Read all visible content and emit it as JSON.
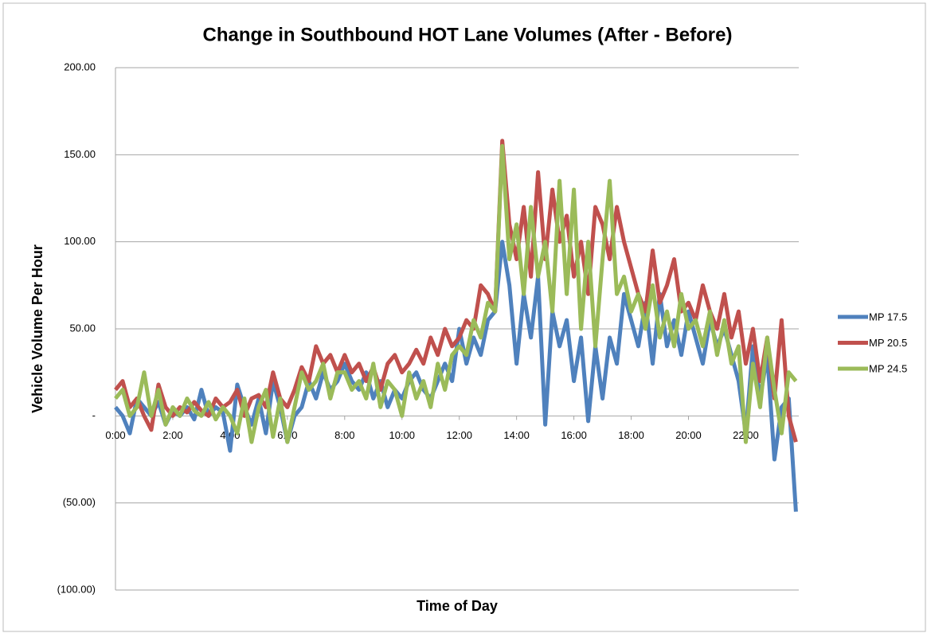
{
  "chart_data": {
    "type": "line",
    "title": "Change in Southbound HOT Lane Volumes (After - Before)",
    "x_label": "Time of Day",
    "y_label": "Vehicle Volume Per Hour",
    "x": [
      0,
      0.25,
      0.5,
      0.75,
      1,
      1.25,
      1.5,
      1.75,
      2,
      2.25,
      2.5,
      2.75,
      3,
      3.25,
      3.5,
      3.75,
      4,
      4.25,
      4.5,
      4.75,
      5,
      5.25,
      5.5,
      5.75,
      6,
      6.25,
      6.5,
      6.75,
      7,
      7.25,
      7.5,
      7.75,
      8,
      8.25,
      8.5,
      8.75,
      9,
      9.25,
      9.5,
      9.75,
      10,
      10.25,
      10.5,
      10.75,
      11,
      11.25,
      11.5,
      11.75,
      12,
      12.25,
      12.5,
      12.75,
      13,
      13.25,
      13.5,
      13.75,
      14,
      14.25,
      14.5,
      14.75,
      15,
      15.25,
      15.5,
      15.75,
      16,
      16.25,
      16.5,
      16.75,
      17,
      17.25,
      17.5,
      17.75,
      18,
      18.25,
      18.5,
      18.75,
      19,
      19.25,
      19.5,
      19.75,
      20,
      20.25,
      20.5,
      20.75,
      21,
      21.25,
      21.5,
      21.75,
      22,
      22.25,
      22.5,
      22.75,
      23,
      23.25,
      23.5,
      23.75
    ],
    "xlim": [
      0,
      23.85
    ],
    "xticks": [
      {
        "value": 0,
        "label": "0:00"
      },
      {
        "value": 2,
        "label": "2:00"
      },
      {
        "value": 4,
        "label": "4:00"
      },
      {
        "value": 6,
        "label": "6:00"
      },
      {
        "value": 8,
        "label": "8:00"
      },
      {
        "value": 10,
        "label": "10:00"
      },
      {
        "value": 12,
        "label": "12:00"
      },
      {
        "value": 14,
        "label": "14:00"
      },
      {
        "value": 16,
        "label": "16:00"
      },
      {
        "value": 18,
        "label": "18:00"
      },
      {
        "value": 20,
        "label": "20:00"
      },
      {
        "value": 22,
        "label": "22:00"
      }
    ],
    "ylim": [
      -100,
      200
    ],
    "yticks": [
      {
        "value": 200,
        "label": "200.00"
      },
      {
        "value": 150,
        "label": "150.00"
      },
      {
        "value": 100,
        "label": "100.00"
      },
      {
        "value": 50,
        "label": "50.00"
      },
      {
        "value": 0,
        "label": "-"
      },
      {
        "value": -50,
        "label": "(50.00)"
      },
      {
        "value": -100,
        "label": "(100.00)"
      }
    ],
    "grid": true,
    "legend": "right",
    "series": [
      {
        "name": "MP 17.5",
        "color": "#4f81bd",
        "values": [
          5,
          0,
          -10,
          10,
          5,
          0,
          8,
          -5,
          3,
          0,
          5,
          -2,
          15,
          0,
          5,
          2,
          -20,
          18,
          5,
          -5,
          10,
          -10,
          20,
          5,
          -15,
          0,
          5,
          20,
          10,
          25,
          15,
          20,
          30,
          20,
          15,
          25,
          10,
          20,
          5,
          15,
          10,
          20,
          25,
          15,
          10,
          20,
          30,
          20,
          50,
          30,
          45,
          35,
          55,
          60,
          100,
          75,
          30,
          70,
          45,
          80,
          -5,
          60,
          40,
          55,
          20,
          45,
          -3,
          40,
          10,
          45,
          30,
          70,
          55,
          40,
          65,
          30,
          70,
          40,
          55,
          35,
          60,
          45,
          30,
          55,
          40,
          50,
          35,
          20,
          -10,
          40,
          10,
          35,
          -25,
          5,
          10,
          -55
        ]
      },
      {
        "name": "MP 20.5",
        "color": "#c0504d",
        "values": [
          15,
          20,
          5,
          10,
          0,
          -8,
          18,
          5,
          0,
          5,
          2,
          8,
          3,
          0,
          10,
          5,
          8,
          15,
          0,
          10,
          12,
          5,
          25,
          10,
          5,
          15,
          28,
          20,
          40,
          30,
          35,
          25,
          35,
          25,
          30,
          20,
          28,
          15,
          30,
          35,
          25,
          30,
          38,
          30,
          45,
          35,
          50,
          40,
          45,
          55,
          50,
          75,
          70,
          60,
          158,
          110,
          90,
          120,
          80,
          140,
          90,
          130,
          100,
          115,
          80,
          100,
          70,
          120,
          110,
          90,
          120,
          100,
          85,
          70,
          60,
          95,
          65,
          75,
          90,
          60,
          65,
          55,
          75,
          60,
          50,
          70,
          45,
          60,
          30,
          50,
          20,
          45,
          10,
          55,
          0,
          -15
        ]
      },
      {
        "name": "MP 24.5",
        "color": "#9bbb59",
        "values": [
          10,
          15,
          0,
          5,
          25,
          0,
          15,
          -5,
          5,
          0,
          10,
          3,
          0,
          8,
          -2,
          5,
          0,
          -10,
          10,
          -15,
          5,
          15,
          -12,
          10,
          -15,
          5,
          25,
          15,
          20,
          30,
          10,
          25,
          25,
          15,
          20,
          10,
          30,
          5,
          20,
          15,
          0,
          25,
          10,
          20,
          5,
          30,
          15,
          35,
          40,
          35,
          55,
          45,
          65,
          60,
          155,
          90,
          110,
          70,
          120,
          80,
          100,
          60,
          135,
          70,
          130,
          50,
          100,
          40,
          90,
          135,
          70,
          80,
          60,
          70,
          50,
          75,
          45,
          60,
          40,
          70,
          50,
          55,
          40,
          60,
          35,
          55,
          30,
          40,
          -15,
          30,
          5,
          45,
          15,
          -10,
          25,
          20
        ]
      }
    ]
  }
}
